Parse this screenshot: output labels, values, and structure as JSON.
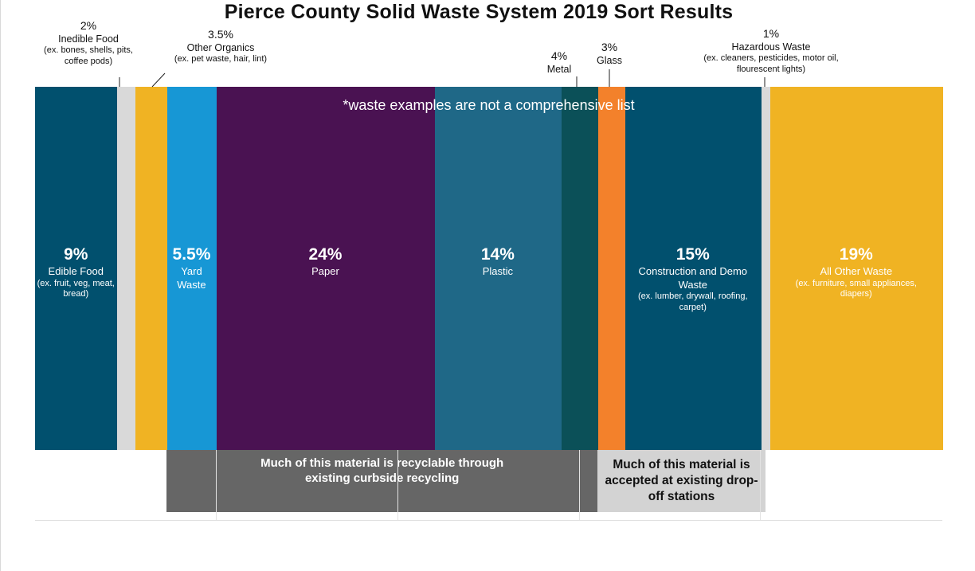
{
  "chart_data": {
    "type": "bar",
    "title": "Pierce County Solid Waste System 2019 Sort Results",
    "note": "*waste examples are not a comprehensive list",
    "segments": [
      {
        "pct_label": "9%",
        "value": 9,
        "name": "Edible Food",
        "example": "(ex. fruit, veg, meat, bread)",
        "color": "#01506e",
        "label": "inside",
        "text_color": "#ffffff"
      },
      {
        "pct_label": "2%",
        "value": 2,
        "name": "Inedible Food",
        "example": "(ex. bones, shells, pits, coffee pods)",
        "color": "#d9d9d9",
        "label": "outside"
      },
      {
        "pct_label": "3.5%",
        "value": 3.5,
        "name": "Other Organics",
        "example": "(ex. pet waste, hair, lint)",
        "color": "#f0b323",
        "label": "outside"
      },
      {
        "pct_label": "5.5%",
        "value": 5.5,
        "name": "Yard Waste",
        "example": "",
        "color": "#1797d5",
        "label": "inside",
        "text_color": "#ffffff"
      },
      {
        "pct_label": "24%",
        "value": 24,
        "name": "Paper",
        "example": "",
        "color": "#4a1252",
        "label": "inside",
        "text_color": "#ffffff"
      },
      {
        "pct_label": "14%",
        "value": 14,
        "name": "Plastic",
        "example": "",
        "color": "#1f6887",
        "label": "inside",
        "text_color": "#ffffff"
      },
      {
        "pct_label": "4%",
        "value": 4,
        "name": "Metal",
        "example": "",
        "color": "#0b5058",
        "label": "outside"
      },
      {
        "pct_label": "3%",
        "value": 3,
        "name": "Glass",
        "example": "",
        "color": "#f3812b",
        "label": "outside"
      },
      {
        "pct_label": "15%",
        "value": 15,
        "name": "Construction and Demo Waste",
        "example": "(ex. lumber, drywall, roofing, carpet)",
        "color": "#01506e",
        "label": "inside",
        "text_color": "#ffffff"
      },
      {
        "pct_label": "1%",
        "value": 1,
        "name": "Hazardous Waste",
        "example": "(ex. cleaners, pesticides, motor oil, flourescent lights)",
        "color": "#d9d9d9",
        "label": "outside"
      },
      {
        "pct_label": "19%",
        "value": 19,
        "name": "All Other Waste",
        "example": "(ex. furniture, small appliances, diapers)",
        "color": "#f0b323",
        "label": "inside",
        "text_color": "#ffffff"
      }
    ],
    "callouts": [
      {
        "text": "Much of this material is recyclable through existing curbside recycling",
        "start_value": 14.5,
        "end_value": 62,
        "style": "dark"
      },
      {
        "text": "Much of this material is accepted at existing drop-off stations",
        "start_value": 62,
        "end_value": 80.5,
        "style": "light"
      }
    ],
    "total": 100
  }
}
